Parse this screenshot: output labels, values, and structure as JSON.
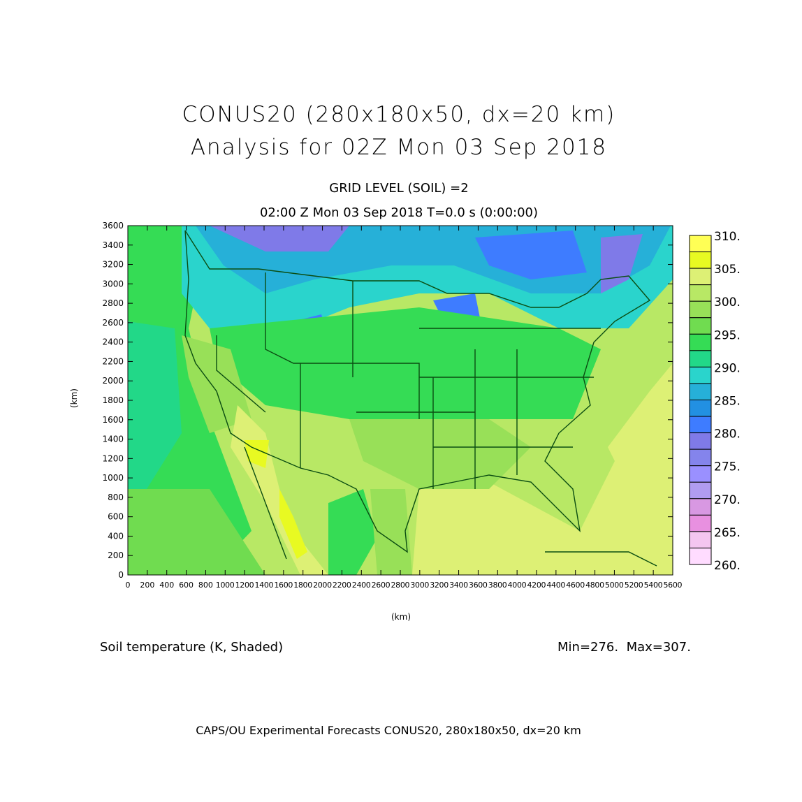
{
  "header": {
    "title_line1": "CONUS20 (280x180x50, dx=20 km)",
    "title_line2": "Analysis for 02Z Mon 03 Sep 2018",
    "subtitle1": "GRID LEVEL (SOIL) =2",
    "subtitle2": "02:00 Z Mon 03 Sep 2018    T=0.0 s (0:00:00)"
  },
  "chart_data": {
    "type": "heatmap",
    "title": "Soil temperature (K, Shaded)",
    "xlabel": "(km)",
    "ylabel": "(km)",
    "xlim": [
      0,
      5600
    ],
    "ylim": [
      0,
      3600
    ],
    "x_ticks": [
      "0",
      "200",
      "400",
      "600",
      "800",
      "1000",
      "1200",
      "1400",
      "1600",
      "1800",
      "2000",
      "2200",
      "2400",
      "2600",
      "2800",
      "3000",
      "3200",
      "3400",
      "3600",
      "3800",
      "4000",
      "4200",
      "4400",
      "4600",
      "4800",
      "5000",
      "5200",
      "5400",
      "5600"
    ],
    "y_ticks": [
      "0",
      "200",
      "400",
      "600",
      "800",
      "1000",
      "1200",
      "1400",
      "1600",
      "1800",
      "2000",
      "2200",
      "2400",
      "2600",
      "2800",
      "3000",
      "3200",
      "3400",
      "3600"
    ],
    "colorbar": {
      "levels": [
        260,
        262.5,
        265,
        267.5,
        270,
        272.5,
        275,
        277.5,
        280,
        282.5,
        285,
        287.5,
        290,
        292.5,
        295,
        297.5,
        300,
        302.5,
        305,
        307.5,
        310
      ],
      "labels": [
        "310.",
        "305.",
        "300.",
        "295.",
        "290.",
        "285.",
        "280.",
        "275.",
        "270.",
        "265.",
        "260."
      ],
      "colors_top_to_bottom": [
        "#FFFF55",
        "#E8FA22",
        "#DDF075",
        "#B8E865",
        "#98E058",
        "#70DC50",
        "#35DC55",
        "#22D888",
        "#2AD4CC",
        "#26B0D8",
        "#2290E2",
        "#3E7CFF",
        "#7F7AE8",
        "#8484EC",
        "#9A90FF",
        "#B09CF0",
        "#D898E2",
        "#E890E0",
        "#F4C6F0",
        "#FFDCFF"
      ]
    },
    "min": "Min=276.",
    "max": "Max=307."
  },
  "footer": "CAPS/OU Experimental Forecasts  CONUS20, 280x180x50, dx=20 km"
}
